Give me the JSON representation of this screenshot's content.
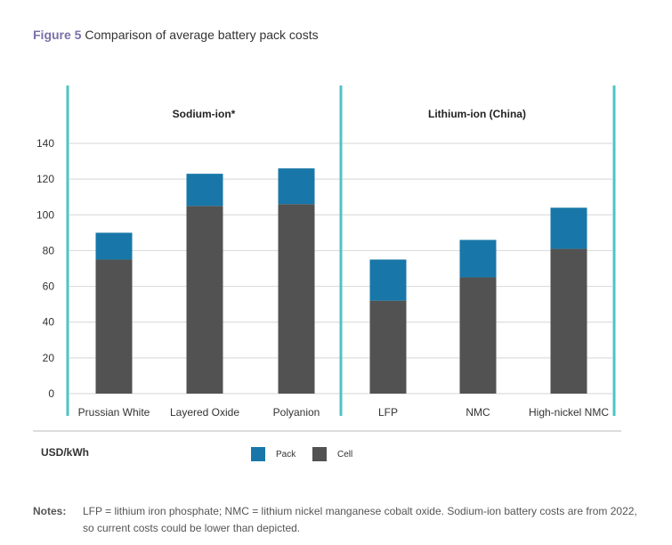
{
  "figure_label": "Figure 5",
  "title": "Comparison of average battery pack costs",
  "chart_data": {
    "type": "bar",
    "stacked": true,
    "title": "Comparison of average battery pack costs",
    "ylabel": "USD/kWh",
    "ylim": [
      0,
      140
    ],
    "yticks": [
      0,
      20,
      40,
      60,
      80,
      100,
      120,
      140
    ],
    "grid": true,
    "legend_placement": "bottom",
    "groups": [
      {
        "label": "Sodium-ion*",
        "categories": [
          "Prussian White",
          "Layered Oxide",
          "Polyanion"
        ]
      },
      {
        "label": "Lithium-ion (China)",
        "categories": [
          "LFP",
          "NMC",
          "High-nickel NMC"
        ]
      }
    ],
    "categories": [
      "Prussian White",
      "Layered Oxide",
      "Polyanion",
      "LFP",
      "NMC",
      "High-nickel NMC"
    ],
    "series": [
      {
        "name": "Cell",
        "color": "#515251",
        "values": [
          75,
          105,
          106,
          52,
          65,
          81
        ]
      },
      {
        "name": "Pack",
        "color": "#1877a8",
        "values": [
          15,
          18,
          20,
          23,
          21,
          23
        ]
      }
    ]
  },
  "legend": [
    {
      "label": "Pack",
      "color": "#1877a8"
    },
    {
      "label": "Cell",
      "color": "#515251"
    }
  ],
  "notes": {
    "label": "Notes:",
    "line1": "LFP = lithium iron phosphate; NMC = lithium nickel manganese cobalt oxide. Sodium-ion battery costs are from 2022,",
    "line2": "so current costs could be lower than depicted."
  },
  "colors": {
    "divider": "#4ec3c4",
    "grid": "#dddddd"
  }
}
